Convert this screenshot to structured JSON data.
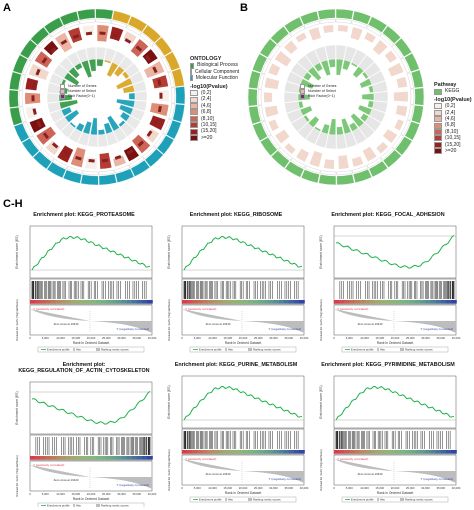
{
  "panels": {
    "a": "A",
    "b": "B",
    "ch": "C-H"
  },
  "ontology_legend": {
    "title": "ONTOLOGY",
    "items": [
      {
        "label": "Biological Process",
        "color": "#3a9d4a"
      },
      {
        "label": "Cellular Component",
        "color": "#d9a82a"
      },
      {
        "label": "Molecular Function",
        "color": "#1ea1b8"
      }
    ],
    "pvalue_title": "-log10(Pvalue)",
    "bins": [
      "(0,2]",
      "(2,4]",
      "(4,6]",
      "(6,8]",
      "(8,10]",
      "(10,15]",
      "(15,20]",
      ">=20"
    ],
    "bin_colors": [
      "#f7efe9",
      "#f2d8cc",
      "#eab5a2",
      "#de8d77",
      "#cc6556",
      "#b53c34",
      "#9a2020",
      "#7a1010"
    ],
    "circle_key": [
      "Number of Genes",
      "Number of Select",
      "Rich Factor(0~1)"
    ]
  },
  "pathway_legend": {
    "title": "Pathway",
    "items": [
      {
        "label": "KEGG",
        "color": "#6fbf6c"
      }
    ],
    "pvalue_title": "-log10(Pvalue)",
    "bins": [
      "(0,2]",
      "(2,4]",
      "(4,6]",
      "(6,8]",
      "(8,10]",
      "(10,15]",
      "(15,20]",
      ">=20"
    ]
  },
  "gsea": [
    {
      "title_line1": "Enrichment plot: KEGG_PROTEASOME",
      "title_line2": "",
      "curve": "pos"
    },
    {
      "title_line1": "Enrichment plot: KEGG_RIBOSOME",
      "title_line2": "",
      "curve": "pos"
    },
    {
      "title_line1": "Enrichment plot: KEGG_FOCAL_ADHESION",
      "title_line2": "",
      "curve": "neg"
    },
    {
      "title_line1": "Enrichment plot:",
      "title_line2": "KEGG_REGULATION_OF_ACTIN_CYTOSKELETON",
      "curve": "neg"
    },
    {
      "title_line1": "Enrichment plot: KEGG_PURINE_METABOLISM",
      "title_line2": "",
      "curve": "pos"
    },
    {
      "title_line1": "Enrichment plot: KEGG_PYRIMIDINE_METABOLISM",
      "title_line2": "",
      "curve": "pos"
    }
  ],
  "gsea_text": {
    "ylabel_top": "Enrichment score (ES)",
    "ylabel_bottom": "Ranked list metric (Signal2Noise)",
    "xlabel": "Rank in Ordered Dataset",
    "pos_label": "'t' (positively correlated)",
    "neg_label": "'f' (negatively correlated)",
    "zero_cross": "Zero cross at 19440",
    "legend_profile": "Enrichment profile",
    "legend_hits": "Hits",
    "legend_ranking": "Ranking metric scores",
    "xticks": [
      "0",
      "5,000",
      "10,000",
      "15,000",
      "20,000",
      "25,000",
      "30,000",
      "35,000",
      "40,000"
    ]
  },
  "colors": {
    "bp": "#3a9d4a",
    "cc": "#d9a82a",
    "mf": "#1ea1b8",
    "kegg": "#6fbf6c",
    "curve": "#22b14c",
    "red": "#e0394a",
    "blue": "#3045a8"
  }
}
